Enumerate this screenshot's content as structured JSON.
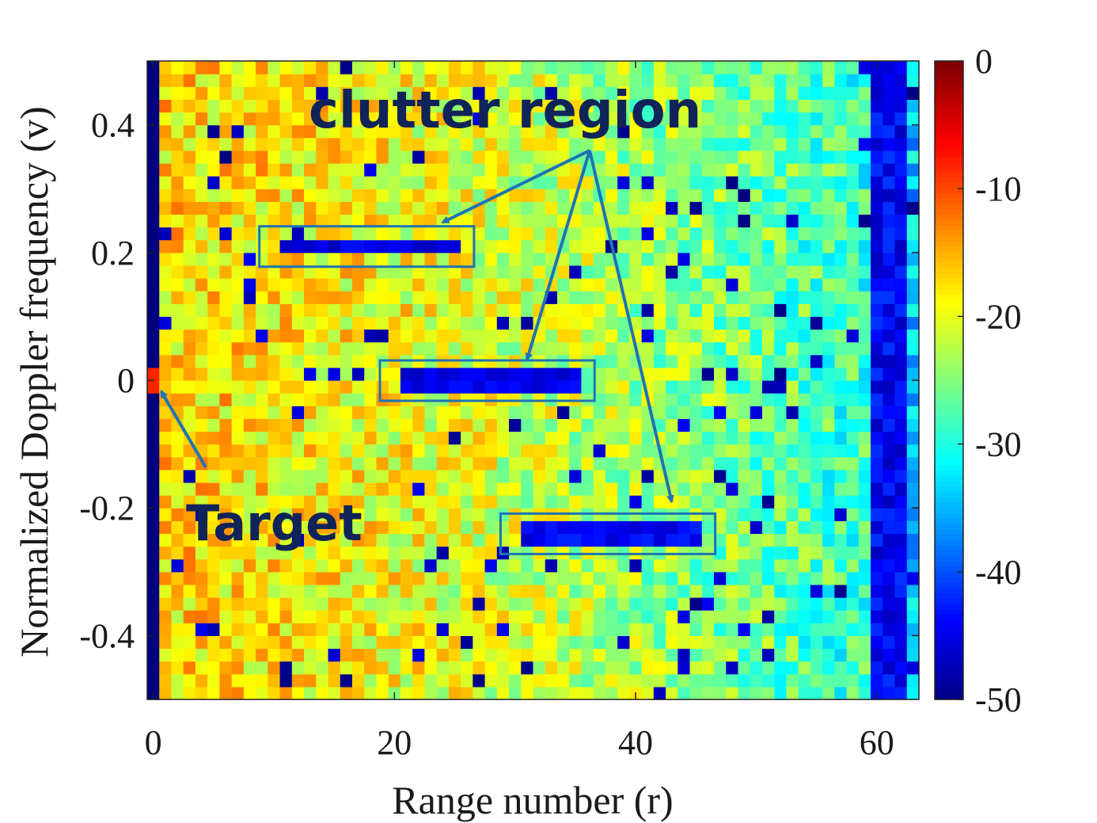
{
  "chart_data": {
    "type": "heatmap",
    "title": "",
    "xlabel": "Range number (r)",
    "ylabel": "Normalized Doppler frequency (v)",
    "xlim": [
      -0.5,
      63.5
    ],
    "ylim": [
      -0.5,
      0.5
    ],
    "x_ticks": [
      0,
      20,
      40,
      60
    ],
    "y_ticks": [
      -0.4,
      -0.2,
      0,
      0.2,
      0.4
    ],
    "x_tick_labels": [
      "0",
      "20",
      "40",
      "60"
    ],
    "y_tick_labels": [
      "-0.4",
      "-0.2",
      "0",
      "0.2",
      "0.4"
    ],
    "grid": "off",
    "colormap": "jet",
    "colorbar": {
      "range": [
        -50,
        0
      ],
      "ticks": [
        0,
        -10,
        -20,
        -30,
        -40,
        -50
      ],
      "tick_labels": [
        "0",
        "-10",
        "-20",
        "-30",
        "-40",
        "-50"
      ]
    },
    "grid_size": {
      "range_bins": 64,
      "doppler_bins": 50
    },
    "features": {
      "background_level_db": -22,
      "near_range_clutter_db": -17,
      "far_range_rolloff_db": -30,
      "null_column_range": 0,
      "null_column_db": -50,
      "target": {
        "range": 0,
        "doppler": 0,
        "level_db": -8
      },
      "deep_null_columns": {
        "range_start": 60,
        "range_end": 62,
        "level_db": -44
      },
      "bright_ridges": [
        {
          "doppler": 0.02,
          "range_start": 1,
          "range_end": 22,
          "level_db": -13
        },
        {
          "doppler": -0.18,
          "range_start": 15,
          "range_end": 28,
          "level_db": -14
        }
      ],
      "clutter_lines": [
        {
          "doppler": 0.21,
          "range_start": 11,
          "range_end": 25,
          "level_db": -47
        },
        {
          "doppler": 0.0,
          "range_start": 21,
          "range_end": 35,
          "level_db": -47
        },
        {
          "doppler": -0.24,
          "range_start": 31,
          "range_end": 45,
          "level_db": -46
        }
      ]
    },
    "annotations": [
      {
        "text": "clutter region",
        "points_to": "clutter_lines"
      },
      {
        "text": "Target",
        "points_to": "target"
      }
    ]
  },
  "annotation_color": "#1e73b4"
}
